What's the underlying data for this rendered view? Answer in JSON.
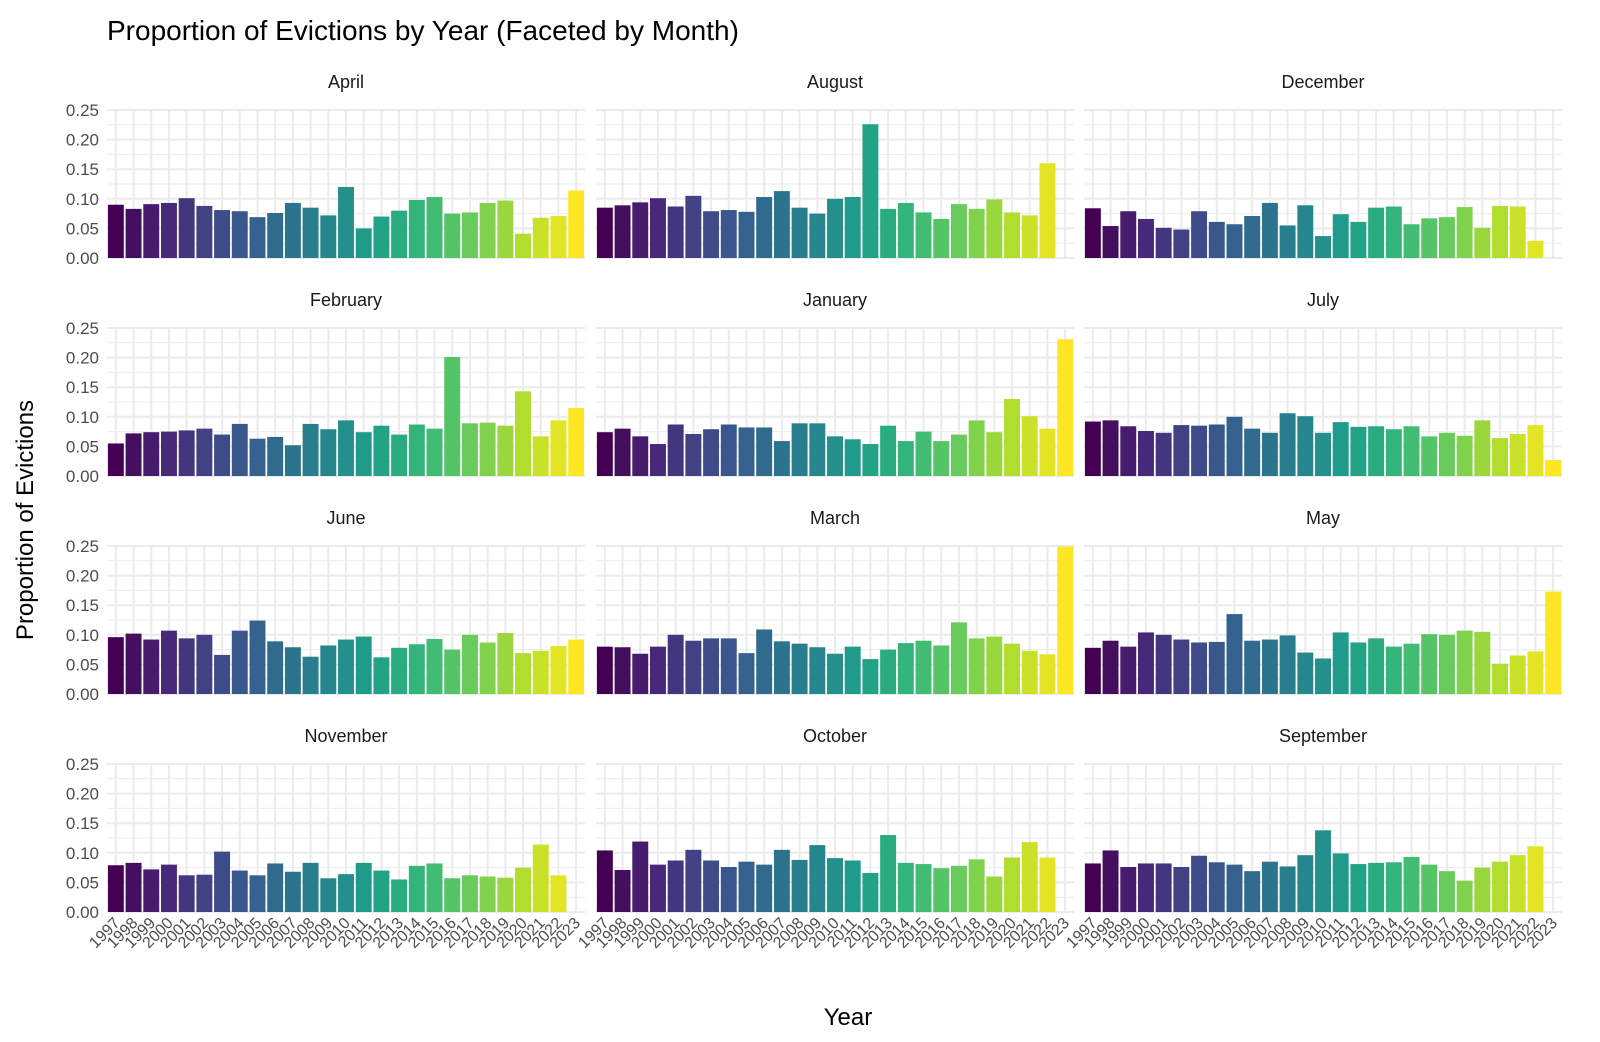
{
  "chart_data": {
    "type": "bar",
    "title": "Proportion of Evictions by Year (Faceted by Month)",
    "xlabel": "Year",
    "ylabel": "Proportion of Evictions",
    "ylim": [
      0,
      0.25
    ],
    "yticks": [
      "0.00",
      "0.05",
      "0.10",
      "0.15",
      "0.20",
      "0.25"
    ],
    "grid": true,
    "legend": "none",
    "color_scale": "viridis",
    "palette": [
      "#440154",
      "#482878",
      "#3E4A89",
      "#31688E",
      "#26828E",
      "#1F9E89",
      "#35B779",
      "#6DCD59",
      "#B4DE2C",
      "#FDE725"
    ],
    "years": [
      "1997",
      "1998",
      "1999",
      "2000",
      "2001",
      "2002",
      "2003",
      "2004",
      "2005",
      "2006",
      "2007",
      "2008",
      "2009",
      "2010",
      "2011",
      "2012",
      "2013",
      "2014",
      "2015",
      "2016",
      "2017",
      "2018",
      "2019",
      "2020",
      "2021",
      "2022",
      "2023"
    ],
    "facets": [
      {
        "month": "April",
        "values": [
          0.09,
          0.083,
          0.091,
          0.093,
          0.101,
          0.088,
          0.081,
          0.079,
          0.069,
          0.076,
          0.093,
          0.085,
          0.072,
          0.12,
          0.05,
          0.07,
          0.08,
          0.098,
          0.103,
          0.075,
          0.077,
          0.093,
          0.097,
          0.041,
          0.068,
          0.071,
          0.114
        ]
      },
      {
        "month": "August",
        "values": [
          0.085,
          0.089,
          0.094,
          0.101,
          0.087,
          0.105,
          0.079,
          0.081,
          0.078,
          0.103,
          0.113,
          0.085,
          0.075,
          0.1,
          0.103,
          0.226,
          0.083,
          0.093,
          0.077,
          0.066,
          0.091,
          0.083,
          0.099,
          0.077,
          0.072,
          0.16,
          null
        ]
      },
      {
        "month": "December",
        "values": [
          0.084,
          0.054,
          0.079,
          0.066,
          0.051,
          0.048,
          0.079,
          0.061,
          0.057,
          0.071,
          0.093,
          0.055,
          0.089,
          0.037,
          0.074,
          0.061,
          0.085,
          0.087,
          0.057,
          0.067,
          0.069,
          0.086,
          0.051,
          0.088,
          0.087,
          0.029,
          null
        ]
      },
      {
        "month": "February",
        "values": [
          0.055,
          0.072,
          0.074,
          0.075,
          0.077,
          0.08,
          0.07,
          0.088,
          0.063,
          0.066,
          0.052,
          0.088,
          0.079,
          0.094,
          0.074,
          0.085,
          0.07,
          0.087,
          0.08,
          0.201,
          0.089,
          0.09,
          0.085,
          0.143,
          0.067,
          0.094,
          0.115
        ]
      },
      {
        "month": "January",
        "values": [
          0.074,
          0.08,
          0.067,
          0.054,
          0.087,
          0.071,
          0.079,
          0.087,
          0.082,
          0.082,
          0.059,
          0.089,
          0.089,
          0.067,
          0.062,
          0.054,
          0.085,
          0.059,
          0.075,
          0.059,
          0.07,
          0.094,
          0.074,
          0.13,
          0.101,
          0.08,
          0.231
        ]
      },
      {
        "month": "July",
        "values": [
          0.092,
          0.094,
          0.084,
          0.076,
          0.073,
          0.086,
          0.085,
          0.087,
          0.1,
          0.08,
          0.073,
          0.106,
          0.101,
          0.073,
          0.091,
          0.083,
          0.084,
          0.079,
          0.084,
          0.067,
          0.073,
          0.068,
          0.094,
          0.064,
          0.071,
          0.086,
          0.027
        ]
      },
      {
        "month": "June",
        "values": [
          0.096,
          0.102,
          0.092,
          0.107,
          0.094,
          0.1,
          0.066,
          0.107,
          0.124,
          0.089,
          0.079,
          0.063,
          0.082,
          0.092,
          0.097,
          0.062,
          0.078,
          0.084,
          0.093,
          0.075,
          0.1,
          0.087,
          0.103,
          0.069,
          0.073,
          0.081,
          0.092
        ]
      },
      {
        "month": "March",
        "values": [
          0.08,
          0.079,
          0.068,
          0.08,
          0.1,
          0.09,
          0.094,
          0.094,
          0.069,
          0.109,
          0.089,
          0.085,
          0.079,
          0.068,
          0.08,
          0.059,
          0.075,
          0.086,
          0.09,
          0.082,
          0.121,
          0.094,
          0.097,
          0.085,
          0.073,
          0.067,
          0.249
        ]
      },
      {
        "month": "May",
        "values": [
          0.078,
          0.09,
          0.08,
          0.104,
          0.1,
          0.092,
          0.087,
          0.088,
          0.135,
          0.09,
          0.092,
          0.099,
          0.07,
          0.06,
          0.104,
          0.087,
          0.094,
          0.08,
          0.085,
          0.101,
          0.1,
          0.107,
          0.105,
          0.051,
          0.065,
          0.072,
          0.173
        ]
      },
      {
        "month": "November",
        "values": [
          0.079,
          0.083,
          0.072,
          0.08,
          0.062,
          0.063,
          0.102,
          0.07,
          0.062,
          0.082,
          0.068,
          0.083,
          0.057,
          0.064,
          0.083,
          0.07,
          0.055,
          0.078,
          0.082,
          0.057,
          0.062,
          0.06,
          0.058,
          0.075,
          0.114,
          0.062,
          null
        ]
      },
      {
        "month": "October",
        "values": [
          0.104,
          0.071,
          0.119,
          0.08,
          0.087,
          0.105,
          0.087,
          0.076,
          0.085,
          0.08,
          0.105,
          0.088,
          0.113,
          0.091,
          0.087,
          0.066,
          0.13,
          0.083,
          0.081,
          0.074,
          0.078,
          0.089,
          0.06,
          0.092,
          0.118,
          0.092,
          null
        ]
      },
      {
        "month": "September",
        "values": [
          0.082,
          0.104,
          0.076,
          0.082,
          0.082,
          0.076,
          0.095,
          0.084,
          0.08,
          0.069,
          0.085,
          0.077,
          0.096,
          0.138,
          0.099,
          0.081,
          0.083,
          0.084,
          0.093,
          0.08,
          0.069,
          0.053,
          0.075,
          0.085,
          0.096,
          0.111,
          null
        ]
      }
    ]
  }
}
